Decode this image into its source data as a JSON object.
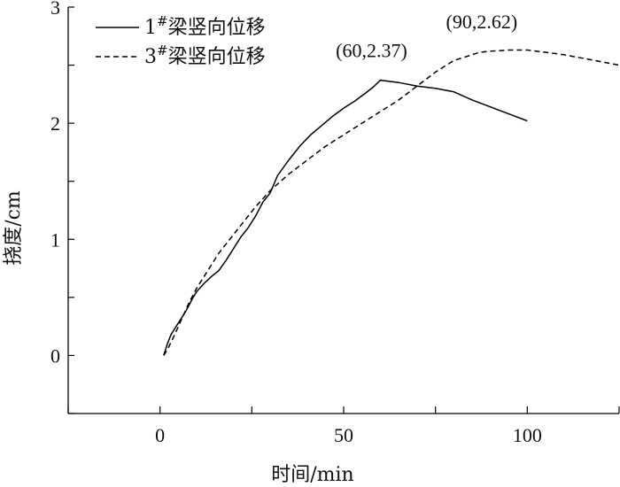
{
  "chart_data": {
    "type": "line",
    "xlabel": "时间/min",
    "ylabel": "挠度/cm",
    "xlim": [
      -25,
      125
    ],
    "ylim": [
      -0.5,
      3
    ],
    "xticks": [
      0,
      50,
      100
    ],
    "yticks": [
      0,
      1,
      2,
      3
    ],
    "legend_position": "top-left",
    "grid": false,
    "series": [
      {
        "name": "1#梁竖向位移",
        "name_base": "1",
        "name_sup": "#",
        "name_rest": "梁竖向位移",
        "style": "solid",
        "color": "#000000",
        "x": [
          1,
          2,
          3,
          5,
          7,
          9,
          10,
          12,
          14,
          16,
          18,
          20,
          22,
          24,
          26,
          28,
          30,
          32,
          35,
          38,
          41,
          44,
          47,
          50,
          53,
          56,
          58,
          60,
          65,
          70,
          75,
          80,
          85,
          90,
          95,
          100
        ],
        "y": [
          0.0,
          0.1,
          0.18,
          0.28,
          0.38,
          0.5,
          0.55,
          0.62,
          0.68,
          0.73,
          0.82,
          0.92,
          1.02,
          1.1,
          1.2,
          1.32,
          1.4,
          1.55,
          1.68,
          1.8,
          1.9,
          1.98,
          2.06,
          2.13,
          2.19,
          2.26,
          2.31,
          2.37,
          2.35,
          2.32,
          2.3,
          2.27,
          2.2,
          2.14,
          2.08,
          2.02
        ]
      },
      {
        "name": "3#梁竖向位移",
        "name_base": "3",
        "name_sup": "#",
        "name_rest": "梁竖向位移",
        "style": "dashed",
        "color": "#000000",
        "x": [
          1,
          2,
          4,
          6,
          8,
          10,
          12,
          14,
          16,
          18,
          20,
          23,
          26,
          30,
          35,
          40,
          45,
          50,
          55,
          60,
          65,
          70,
          75,
          80,
          84,
          87,
          90,
          95,
          100,
          105,
          110,
          115,
          120,
          125
        ],
        "y": [
          0.0,
          0.05,
          0.18,
          0.32,
          0.46,
          0.58,
          0.68,
          0.78,
          0.88,
          0.96,
          1.04,
          1.16,
          1.28,
          1.42,
          1.56,
          1.68,
          1.8,
          1.9,
          2.0,
          2.1,
          2.2,
          2.32,
          2.44,
          2.54,
          2.58,
          2.61,
          2.62,
          2.63,
          2.63,
          2.61,
          2.59,
          2.56,
          2.53,
          2.5
        ]
      }
    ],
    "annotations": [
      {
        "text": "(60,2.37)",
        "x": 60,
        "y": 2.37
      },
      {
        "text": "(90,2.62)",
        "x": 90,
        "y": 2.62
      }
    ]
  }
}
